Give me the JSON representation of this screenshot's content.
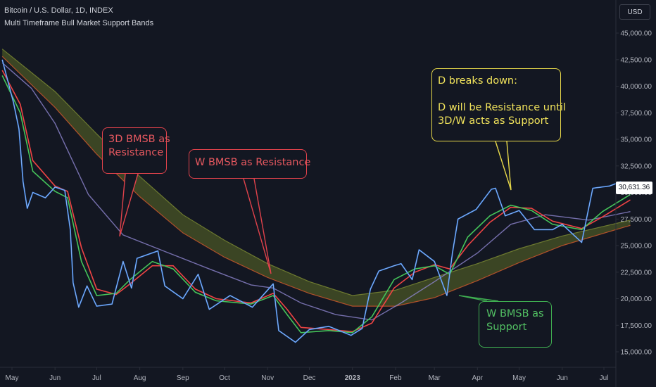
{
  "header": {
    "title": "Bitcoin / U.S. Dollar, 1D, INDEX",
    "subtitle": "Multi Timeframe Bull Market Support Bands"
  },
  "currency_label": "USD",
  "last_price": "30,631.36",
  "colors": {
    "background": "#131722",
    "axis_text": "#b2b5be",
    "grid": "#1f2330",
    "price": "#3b82e6",
    "up_candle": "#dbe7ff",
    "green": "#45c45a",
    "red": "#ef4444",
    "purple": "#8e86cf",
    "olive": "#5c6b26"
  },
  "annotations": {
    "res_3d": {
      "line1": "3D BMSB as",
      "line2": "Resistance"
    },
    "res_w": {
      "line1": "W BMSB as Resistance"
    },
    "d_break": {
      "line1": "D breaks down:",
      "line2": "D will be Resistance until",
      "line3": "3D/W acts as Support"
    },
    "sup_w": {
      "line1": "W BMSB as",
      "line2": "Support"
    }
  },
  "chart_data": {
    "type": "line",
    "title": "Bitcoin / U.S. Dollar, 1D, INDEX",
    "subtitle": "Multi Timeframe Bull Market Support Bands",
    "x_ticks": [
      "May",
      "Jun",
      "Jul",
      "Aug",
      "Sep",
      "Oct",
      "Nov",
      "Dec",
      "2023",
      "Feb",
      "Mar",
      "Apr",
      "May",
      "Jun",
      "Jul"
    ],
    "x_tick_dates": [
      "2022-05-01",
      "2022-06-01",
      "2022-07-01",
      "2022-08-01",
      "2022-09-01",
      "2022-10-01",
      "2022-11-01",
      "2022-12-01",
      "2023-01-01",
      "2023-02-01",
      "2023-03-01",
      "2023-04-01",
      "2023-05-01",
      "2023-06-01",
      "2023-07-01"
    ],
    "y_ticks": [
      15000,
      17500,
      20000,
      22500,
      25000,
      27500,
      30000,
      32500,
      35000,
      37500,
      40000,
      42500,
      45000
    ],
    "ylim": [
      14000,
      47000
    ],
    "grid": false,
    "series": [
      {
        "key": "price",
        "values": [
          [
            "2022-04-24",
            42500
          ],
          [
            "2022-05-02",
            38500
          ],
          [
            "2022-05-06",
            36000
          ],
          [
            "2022-05-09",
            31000
          ],
          [
            "2022-05-12",
            28500
          ],
          [
            "2022-05-16",
            30000
          ],
          [
            "2022-05-25",
            29500
          ],
          [
            "2022-06-01",
            30500
          ],
          [
            "2022-06-08",
            30200
          ],
          [
            "2022-06-12",
            26500
          ],
          [
            "2022-06-14",
            21500
          ],
          [
            "2022-06-18",
            19200
          ],
          [
            "2022-06-24",
            21200
          ],
          [
            "2022-07-01",
            19300
          ],
          [
            "2022-07-12",
            19500
          ],
          [
            "2022-07-20",
            23500
          ],
          [
            "2022-07-26",
            21000
          ],
          [
            "2022-07-30",
            23800
          ],
          [
            "2022-08-14",
            24500
          ],
          [
            "2022-08-19",
            21200
          ],
          [
            "2022-09-01",
            20000
          ],
          [
            "2022-09-12",
            22300
          ],
          [
            "2022-09-20",
            19000
          ],
          [
            "2022-10-05",
            20300
          ],
          [
            "2022-10-21",
            19200
          ],
          [
            "2022-11-05",
            21400
          ],
          [
            "2022-11-09",
            17000
          ],
          [
            "2022-11-21",
            15900
          ],
          [
            "2022-12-01",
            17100
          ],
          [
            "2022-12-15",
            17400
          ],
          [
            "2022-12-31",
            16550
          ],
          [
            "2023-01-08",
            17200
          ],
          [
            "2023-01-14",
            20900
          ],
          [
            "2023-01-20",
            22600
          ],
          [
            "2023-01-31",
            23100
          ],
          [
            "2023-02-05",
            23300
          ],
          [
            "2023-02-13",
            21800
          ],
          [
            "2023-02-18",
            24600
          ],
          [
            "2023-03-01",
            23500
          ],
          [
            "2023-03-10",
            20300
          ],
          [
            "2023-03-14",
            24300
          ],
          [
            "2023-03-18",
            27500
          ],
          [
            "2023-03-31",
            28400
          ],
          [
            "2023-04-11",
            30300
          ],
          [
            "2023-04-14",
            30400
          ],
          [
            "2023-04-21",
            27800
          ],
          [
            "2023-05-01",
            28300
          ],
          [
            "2023-05-12",
            26500
          ],
          [
            "2023-05-25",
            26500
          ],
          [
            "2023-06-01",
            27000
          ],
          [
            "2023-06-15",
            25300
          ],
          [
            "2023-06-23",
            30400
          ],
          [
            "2023-07-05",
            30600
          ],
          [
            "2023-07-13",
            31000
          ],
          [
            "2023-07-20",
            30631
          ]
        ]
      },
      {
        "key": "green",
        "values": [
          [
            "2022-04-24",
            41000
          ],
          [
            "2022-05-07",
            37500
          ],
          [
            "2022-05-16",
            32000
          ],
          [
            "2022-06-01",
            30100
          ],
          [
            "2022-06-10",
            29500
          ],
          [
            "2022-06-20",
            23500
          ],
          [
            "2022-07-01",
            20300
          ],
          [
            "2022-07-15",
            20500
          ],
          [
            "2022-07-25",
            21800
          ],
          [
            "2022-08-10",
            23500
          ],
          [
            "2022-08-25",
            22800
          ],
          [
            "2022-09-10",
            20600
          ],
          [
            "2022-09-25",
            19800
          ],
          [
            "2022-10-20",
            19500
          ],
          [
            "2022-11-05",
            20300
          ],
          [
            "2022-11-15",
            18500
          ],
          [
            "2022-11-25",
            16800
          ],
          [
            "2022-12-15",
            17000
          ],
          [
            "2023-01-01",
            16800
          ],
          [
            "2023-01-15",
            18300
          ],
          [
            "2023-01-31",
            21800
          ],
          [
            "2023-02-15",
            22800
          ],
          [
            "2023-03-01",
            23100
          ],
          [
            "2023-03-12",
            22300
          ],
          [
            "2023-03-25",
            25800
          ],
          [
            "2023-04-10",
            27800
          ],
          [
            "2023-04-25",
            28800
          ],
          [
            "2023-05-10",
            28300
          ],
          [
            "2023-05-25",
            27000
          ],
          [
            "2023-06-15",
            26500
          ],
          [
            "2023-06-30",
            28200
          ],
          [
            "2023-07-20",
            29800
          ]
        ]
      },
      {
        "key": "red",
        "values": [
          [
            "2022-04-24",
            41500
          ],
          [
            "2022-05-07",
            38300
          ],
          [
            "2022-05-16",
            33000
          ],
          [
            "2022-06-01",
            30600
          ],
          [
            "2022-06-10",
            30100
          ],
          [
            "2022-06-20",
            24800
          ],
          [
            "2022-07-01",
            20900
          ],
          [
            "2022-07-15",
            20400
          ],
          [
            "2022-07-25",
            21400
          ],
          [
            "2022-08-10",
            23100
          ],
          [
            "2022-08-25",
            23100
          ],
          [
            "2022-09-10",
            20900
          ],
          [
            "2022-09-25",
            20000
          ],
          [
            "2022-10-20",
            19600
          ],
          [
            "2022-11-05",
            20500
          ],
          [
            "2022-11-15",
            19000
          ],
          [
            "2022-11-25",
            17300
          ],
          [
            "2022-12-15",
            17100
          ],
          [
            "2023-01-01",
            16900
          ],
          [
            "2023-01-15",
            17700
          ],
          [
            "2023-01-31",
            21000
          ],
          [
            "2023-02-15",
            22500
          ],
          [
            "2023-03-01",
            23200
          ],
          [
            "2023-03-12",
            22800
          ],
          [
            "2023-03-25",
            25000
          ],
          [
            "2023-04-10",
            27200
          ],
          [
            "2023-04-25",
            28600
          ],
          [
            "2023-05-10",
            28500
          ],
          [
            "2023-05-25",
            27300
          ],
          [
            "2023-06-15",
            26600
          ],
          [
            "2023-06-30",
            27700
          ],
          [
            "2023-07-20",
            29300
          ]
        ]
      },
      {
        "key": "purple",
        "values": [
          [
            "2022-04-24",
            42200
          ],
          [
            "2022-05-15",
            39800
          ],
          [
            "2022-06-01",
            36500
          ],
          [
            "2022-06-25",
            29800
          ],
          [
            "2022-07-20",
            26000
          ],
          [
            "2022-08-20",
            24400
          ],
          [
            "2022-09-20",
            22800
          ],
          [
            "2022-10-20",
            21300
          ],
          [
            "2022-11-05",
            21000
          ],
          [
            "2022-11-25",
            19600
          ],
          [
            "2022-12-20",
            18500
          ],
          [
            "2023-01-15",
            18000
          ],
          [
            "2023-02-05",
            19600
          ],
          [
            "2023-03-01",
            21600
          ],
          [
            "2023-04-01",
            24300
          ],
          [
            "2023-04-25",
            27000
          ],
          [
            "2023-05-20",
            27900
          ],
          [
            "2023-06-20",
            27400
          ],
          [
            "2023-07-20",
            28200
          ]
        ]
      },
      {
        "key": "band_w_top",
        "values": [
          [
            "2022-04-24",
            43500
          ],
          [
            "2022-06-01",
            39500
          ],
          [
            "2022-07-01",
            35500
          ],
          [
            "2022-08-01",
            31500
          ],
          [
            "2022-09-01",
            27900
          ],
          [
            "2022-10-01",
            25500
          ],
          [
            "2022-11-01",
            23300
          ],
          [
            "2022-12-01",
            21600
          ],
          [
            "2023-01-01",
            20300
          ],
          [
            "2023-02-01",
            20800
          ],
          [
            "2023-03-01",
            22000
          ],
          [
            "2023-04-01",
            23300
          ],
          [
            "2023-05-01",
            24700
          ],
          [
            "2023-06-01",
            25900
          ],
          [
            "2023-07-20",
            27400
          ]
        ]
      },
      {
        "key": "band_w_bottom",
        "values": [
          [
            "2022-04-24",
            42800
          ],
          [
            "2022-06-01",
            38000
          ],
          [
            "2022-07-01",
            33600
          ],
          [
            "2022-08-01",
            29600
          ],
          [
            "2022-09-01",
            26200
          ],
          [
            "2022-10-01",
            23900
          ],
          [
            "2022-11-01",
            22000
          ],
          [
            "2022-12-01",
            20500
          ],
          [
            "2023-01-01",
            19300
          ],
          [
            "2023-02-01",
            19300
          ],
          [
            "2023-03-01",
            20100
          ],
          [
            "2023-04-01",
            21700
          ],
          [
            "2023-05-01",
            23400
          ],
          [
            "2023-06-01",
            25000
          ],
          [
            "2023-07-20",
            26900
          ]
        ]
      }
    ]
  }
}
